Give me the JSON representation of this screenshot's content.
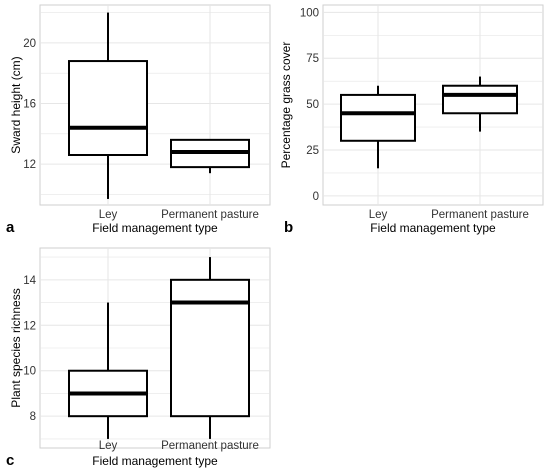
{
  "chart_data": [
    {
      "type": "boxplot",
      "panel_label": "a",
      "xlabel": "Field management type",
      "ylabel": "Sward height (cm)",
      "categories": [
        "Ley",
        "Permanent pasture"
      ],
      "yticks": [
        "12",
        "16",
        "20"
      ],
      "ylim": [
        9.3,
        22.5
      ],
      "boxes": [
        {
          "category": "Ley",
          "min": 9.7,
          "q1": 12.6,
          "median": 14.4,
          "q3": 18.8,
          "max": 22.0
        },
        {
          "category": "Permanent pasture",
          "min": 11.4,
          "q1": 11.8,
          "median": 12.8,
          "q3": 13.6,
          "max": 13.6
        }
      ],
      "grid": true
    },
    {
      "type": "boxplot",
      "panel_label": "b",
      "xlabel": "Field management type",
      "ylabel": "Percentage grass cover",
      "categories": [
        "Ley",
        "Permanent pasture"
      ],
      "yticks": [
        "0",
        "25",
        "50",
        "75",
        "100"
      ],
      "ylim": [
        -5,
        104
      ],
      "boxes": [
        {
          "category": "Ley",
          "min": 15,
          "q1": 30,
          "median": 45,
          "q3": 55,
          "max": 60
        },
        {
          "category": "Permanent pasture",
          "min": 35,
          "q1": 45,
          "median": 55,
          "q3": 60,
          "max": 65
        }
      ],
      "grid": true
    },
    {
      "type": "boxplot",
      "panel_label": "c",
      "xlabel": "Field management type",
      "ylabel": "Plant species richness",
      "categories": [
        "Ley",
        "Permanent pasture"
      ],
      "yticks": [
        "8",
        "10",
        "12",
        "14"
      ],
      "ylim": [
        6.6,
        15.4
      ],
      "boxes": [
        {
          "category": "Ley",
          "min": 7,
          "q1": 8,
          "median": 9,
          "q3": 10,
          "max": 13
        },
        {
          "category": "Permanent pasture",
          "min": 7,
          "q1": 8,
          "median": 13,
          "q3": 14,
          "max": 15
        }
      ],
      "grid": true
    }
  ],
  "colors": {
    "grid": "#e6e6e6",
    "box": "#000000",
    "panel_border": "#cfcfcf"
  }
}
